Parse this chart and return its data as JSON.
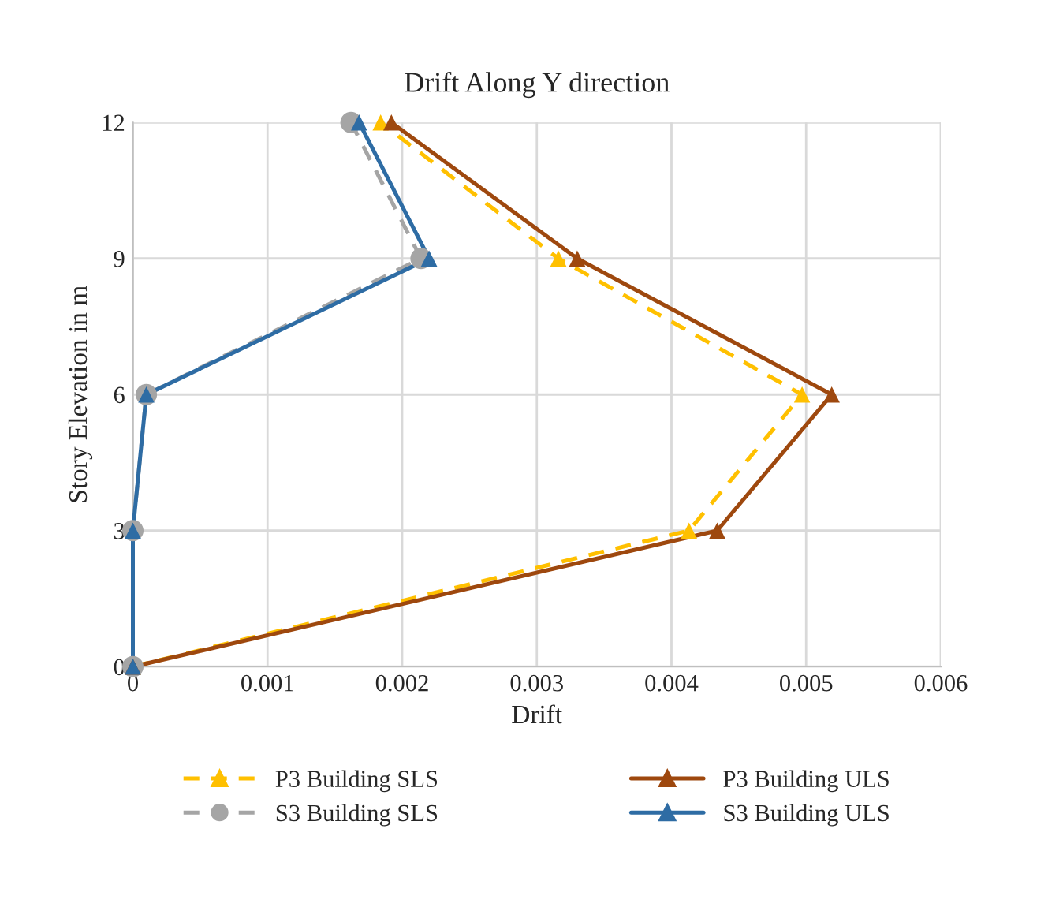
{
  "chart_data": {
    "type": "line",
    "title": "Drift Along Y direction",
    "xlabel": "Drift",
    "ylabel": "Story Elevation in m",
    "xlim": [
      0,
      0.006
    ],
    "xticks": [
      0,
      0.001,
      0.002,
      0.003,
      0.004,
      0.005,
      0.006
    ],
    "ylim": [
      0,
      12
    ],
    "yticks": [
      0,
      3,
      6,
      9,
      12
    ],
    "grid": true,
    "legend": "bottom",
    "series": [
      {
        "name": "P3 Building SLS",
        "color": "#ffc000",
        "marker": "triangle",
        "line_style": "dashed",
        "x": [
          0,
          0.00413,
          0.00497,
          0.00316,
          0.00184
        ],
        "values": [
          0,
          3,
          6,
          9,
          12
        ]
      },
      {
        "name": "S3 Building SLS",
        "color": "#a5a5a5",
        "marker": "circle",
        "line_style": "dashed",
        "x": [
          0,
          0,
          0.0001,
          0.00214,
          0.00162
        ],
        "values": [
          0,
          3,
          6,
          9,
          12
        ]
      },
      {
        "name": "P3 Building ULS",
        "color": "#9e480e",
        "marker": "triangle",
        "line_style": "solid",
        "x": [
          0,
          0.00434,
          0.00519,
          0.0033,
          0.00192
        ],
        "values": [
          0,
          3,
          6,
          9,
          12
        ]
      },
      {
        "name": "S3 Building ULS",
        "color": "#2e6ca4",
        "marker": "triangle",
        "line_style": "solid",
        "x": [
          0,
          0,
          0.0001,
          0.0022,
          0.00168
        ],
        "values": [
          0,
          3,
          6,
          9,
          12
        ]
      }
    ]
  }
}
